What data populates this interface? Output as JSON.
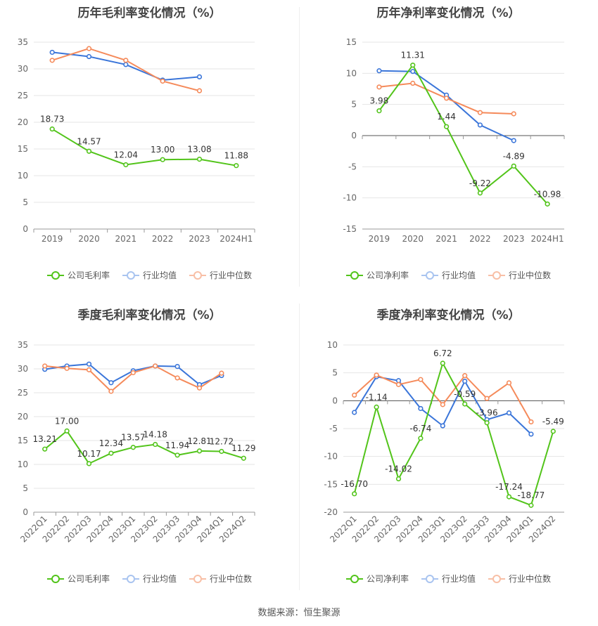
{
  "colors": {
    "company": "#52c41a",
    "avg": "#3a75d9",
    "median": "#f58a5a",
    "grid": "#e6e6e6",
    "axis": "#999999",
    "text": "#666666"
  },
  "source_text": "数据来源：恒生聚源",
  "chart_data": [
    {
      "type": "line",
      "title": "历年毛利率变化情况（%）",
      "categories": [
        "2019",
        "2020",
        "2021",
        "2022",
        "2023",
        "2024H1"
      ],
      "ylim": [
        0,
        35
      ],
      "yticks": [
        0,
        5,
        10,
        15,
        20,
        25,
        30,
        35
      ],
      "rotate_x": false,
      "series": [
        {
          "name": "公司毛利率",
          "values": [
            18.73,
            14.57,
            12.04,
            13.0,
            13.08,
            11.88
          ],
          "labels": [
            "18.73",
            "14.57",
            "12.04",
            "13.00",
            "13.08",
            "11.88"
          ],
          "color_key": "company"
        },
        {
          "name": "行业均值",
          "values": [
            33.1,
            32.3,
            30.8,
            27.9,
            28.5,
            null
          ],
          "color_key": "avg"
        },
        {
          "name": "行业中位数",
          "values": [
            31.6,
            33.8,
            31.6,
            27.7,
            25.9,
            null
          ],
          "color_key": "median"
        }
      ],
      "legend": "bottom"
    },
    {
      "type": "line",
      "title": "历年净利率变化情况（%）",
      "categories": [
        "2019",
        "2020",
        "2021",
        "2022",
        "2023",
        "2024H1"
      ],
      "ylim": [
        -15,
        15
      ],
      "yticks": [
        -15,
        -10,
        -5,
        0,
        5,
        10,
        15
      ],
      "rotate_x": false,
      "series": [
        {
          "name": "公司净利率",
          "values": [
            3.98,
            11.31,
            1.44,
            -9.22,
            -4.89,
            -10.98
          ],
          "labels": [
            "3.98",
            "11.31",
            "1.44",
            "-9.22",
            "-4.89",
            "-10.98"
          ],
          "color_key": "company"
        },
        {
          "name": "行业均值",
          "values": [
            10.4,
            10.3,
            6.5,
            1.7,
            -0.8,
            null
          ],
          "color_key": "avg"
        },
        {
          "name": "行业中位数",
          "values": [
            7.8,
            8.4,
            6.0,
            3.7,
            3.5,
            null
          ],
          "color_key": "median"
        }
      ],
      "legend": "bottom"
    },
    {
      "type": "line",
      "title": "季度毛利率变化情况（%）",
      "categories": [
        "2022Q1",
        "2022Q2",
        "2022Q3",
        "2022Q4",
        "2023Q1",
        "2023Q2",
        "2023Q3",
        "2023Q4",
        "2024Q1",
        "2024Q2"
      ],
      "ylim": [
        0,
        35
      ],
      "yticks": [
        0,
        5,
        10,
        15,
        20,
        25,
        30,
        35
      ],
      "rotate_x": true,
      "series": [
        {
          "name": "公司毛利率",
          "values": [
            13.21,
            17.0,
            10.17,
            12.34,
            13.57,
            14.18,
            11.94,
            12.81,
            12.72,
            11.29
          ],
          "labels": [
            "13.21",
            "17.00",
            "10.17",
            "12.34",
            "13.57",
            "14.18",
            "11.94",
            "12.81",
            "12.72",
            "11.29"
          ],
          "color_key": "company"
        },
        {
          "name": "行业均值",
          "values": [
            29.9,
            30.6,
            31.0,
            27.1,
            29.6,
            30.6,
            30.5,
            26.7,
            28.6,
            null
          ],
          "color_key": "avg"
        },
        {
          "name": "行业中位数",
          "values": [
            30.6,
            30.1,
            29.8,
            25.3,
            29.2,
            30.6,
            28.1,
            26.0,
            29.1,
            null
          ],
          "color_key": "median"
        }
      ],
      "legend": "bottom"
    },
    {
      "type": "line",
      "title": "季度净利率变化情况（%）",
      "categories": [
        "2022Q1",
        "2022Q2",
        "2022Q3",
        "2022Q4",
        "2023Q1",
        "2023Q2",
        "2023Q3",
        "2023Q4",
        "2024Q1",
        "2024Q2"
      ],
      "ylim": [
        -20,
        10
      ],
      "yticks": [
        -20,
        -15,
        -10,
        -5,
        0,
        5,
        10
      ],
      "rotate_x": true,
      "series": [
        {
          "name": "公司净利率",
          "values": [
            -16.7,
            -1.14,
            -14.02,
            -6.74,
            6.72,
            -0.59,
            -3.96,
            -17.24,
            -18.77,
            -5.49
          ],
          "labels": [
            "-16.70",
            "-1.14",
            "-14.02",
            "-6.74",
            "6.72",
            "-0.59",
            "-3.96",
            "-17.24",
            "-18.77",
            "-5.49"
          ],
          "color_key": "company"
        },
        {
          "name": "行业均值",
          "values": [
            -2.1,
            4.3,
            3.6,
            -1.4,
            -4.5,
            3.5,
            -3.4,
            -2.2,
            -6.0,
            null
          ],
          "color_key": "avg"
        },
        {
          "name": "行业中位数",
          "values": [
            1.0,
            4.6,
            2.9,
            3.8,
            -0.7,
            4.5,
            0.4,
            3.2,
            -3.8,
            null
          ],
          "color_key": "median"
        }
      ],
      "legend": "bottom"
    }
  ]
}
